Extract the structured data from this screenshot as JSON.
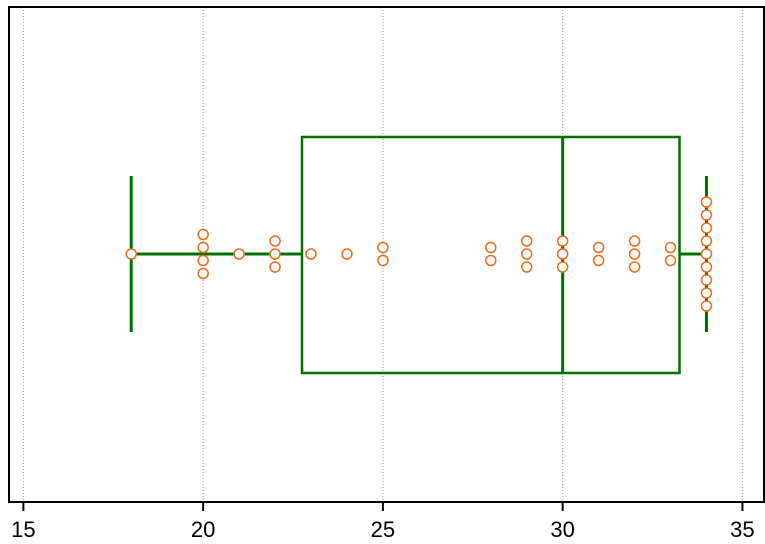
{
  "chart_data": {
    "type": "box",
    "orientation": "horizontal",
    "title": "",
    "xlabel": "",
    "ylabel": "",
    "xlim": [
      14.6,
      35.6
    ],
    "x_ticks": [
      15,
      20,
      25,
      30,
      35
    ],
    "x_tick_labels": [
      "15",
      "20",
      "25",
      "30",
      "35"
    ],
    "grid": "vertical-dotted",
    "legend": "none",
    "box": {
      "whisker_low": 18,
      "q1": 22.75,
      "median": 30,
      "q3": 33.25,
      "whisker_high": 34
    },
    "points": [
      18,
      20,
      20,
      20,
      20,
      21,
      22,
      22,
      22,
      23,
      24,
      25,
      25,
      28,
      28,
      29,
      29,
      29,
      30,
      30,
      30,
      31,
      31,
      32,
      32,
      32,
      33,
      33,
      34,
      34,
      34,
      34,
      34,
      34,
      34,
      34,
      34
    ],
    "colors": {
      "box": "#007000",
      "points": "#ee6a1a",
      "grid": "#999999",
      "frame": "#000000"
    }
  }
}
